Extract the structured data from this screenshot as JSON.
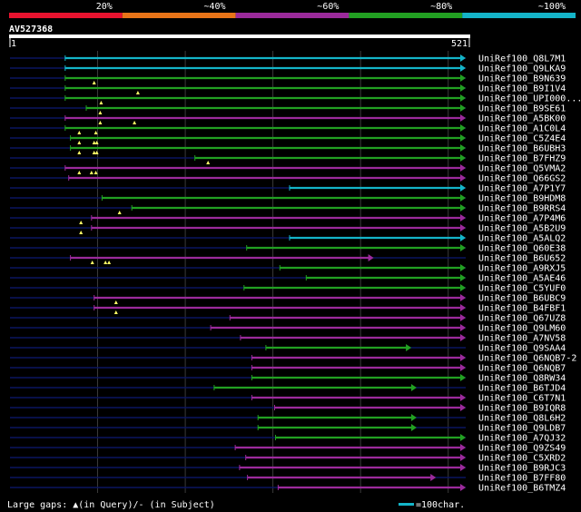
{
  "chart_data": {
    "type": "blast-alignment-overview",
    "query_name": "AV527368",
    "query_start": "1",
    "query_end": "521",
    "query_length": 521,
    "identity_scale": [
      {
        "label": "20%",
        "color": "#e8132f"
      },
      {
        "label": "~40%",
        "color": "#e87418"
      },
      {
        "label": "~60%",
        "color": "#9b2a9b"
      },
      {
        "label": "~80%",
        "color": "#22a022"
      },
      {
        "label": "~100%",
        "color": "#14b4c8"
      }
    ],
    "gap_legend": "Large gaps: ▲(in Query)/- (in Subject)",
    "scale_legend": "=100char.",
    "hits": [
      {
        "name": "UniRef100_Q8L7M1",
        "start": 64,
        "end": 521,
        "color": "#14b4c8",
        "arrow": true,
        "marks": []
      },
      {
        "name": "UniRef100_Q9LKA9",
        "start": 64,
        "end": 521,
        "color": "#14b4c8",
        "arrow": true,
        "marks": []
      },
      {
        "name": "UniRef100_B9N639",
        "start": 64,
        "end": 521,
        "color": "#22a022",
        "arrow": true,
        "marks": [
          97
        ]
      },
      {
        "name": "UniRef100_B9I1V4",
        "start": 64,
        "end": 521,
        "color": "#22a022",
        "arrow": true,
        "marks": [
          147
        ]
      },
      {
        "name": "UniRef100_UPI000...",
        "start": 64,
        "end": 521,
        "color": "#22a022",
        "arrow": true,
        "marks": [
          105
        ]
      },
      {
        "name": "UniRef100_B9SE61",
        "start": 88,
        "end": 521,
        "color": "#22a022",
        "arrow": true,
        "marks": [
          104
        ]
      },
      {
        "name": "UniRef100_A5BK00",
        "start": 64,
        "end": 521,
        "color": "#9b2a9b",
        "arrow": true,
        "marks": [
          104,
          143
        ]
      },
      {
        "name": "UniRef100_A1C0L4",
        "start": 64,
        "end": 521,
        "color": "#22a022",
        "arrow": true,
        "marks": [
          80,
          99
        ]
      },
      {
        "name": "UniRef100_C5Z4E4",
        "start": 70,
        "end": 521,
        "color": "#22a022",
        "arrow": true,
        "marks": [
          80,
          97,
          100
        ]
      },
      {
        "name": "UniRef100_B6UBH3",
        "start": 70,
        "end": 521,
        "color": "#22a022",
        "arrow": true,
        "marks": [
          80,
          97,
          100
        ]
      },
      {
        "name": "UniRef100_B7FHZ9",
        "start": 212,
        "end": 521,
        "color": "#22a022",
        "arrow": true,
        "marks": [
          227
        ]
      },
      {
        "name": "UniRef100_Q5VMA2",
        "start": 64,
        "end": 521,
        "color": "#9b2a9b",
        "arrow": true,
        "marks": [
          80,
          94,
          99
        ]
      },
      {
        "name": "UniRef100_Q66GS2",
        "start": 68,
        "end": 521,
        "color": "#9b2a9b",
        "arrow": true,
        "marks": []
      },
      {
        "name": "UniRef100_A7P1Y7",
        "start": 320,
        "end": 521,
        "color": "#14b4c8",
        "arrow": true,
        "marks": []
      },
      {
        "name": "UniRef100_B9HDM8",
        "start": 106,
        "end": 521,
        "color": "#22a022",
        "arrow": true,
        "marks": []
      },
      {
        "name": "UniRef100_B9RRS4",
        "start": 140,
        "end": 521,
        "color": "#22a022",
        "arrow": true,
        "marks": [
          126
        ]
      },
      {
        "name": "UniRef100_A7P4M6",
        "start": 94,
        "end": 521,
        "color": "#9b2a9b",
        "arrow": true,
        "marks": [
          82
        ]
      },
      {
        "name": "UniRef100_A5B2U9",
        "start": 94,
        "end": 521,
        "color": "#9b2a9b",
        "arrow": true,
        "marks": [
          82
        ]
      },
      {
        "name": "UniRef100_A5ALQ2",
        "start": 320,
        "end": 521,
        "color": "#14b4c8",
        "arrow": true,
        "marks": []
      },
      {
        "name": "UniRef100_Q60E38",
        "start": 271,
        "end": 521,
        "color": "#22a022",
        "arrow": true,
        "marks": []
      },
      {
        "name": "UniRef100_B6U652",
        "start": 70,
        "end": 416,
        "color": "#9b2a9b",
        "arrow": true,
        "marks": [
          95,
          110,
          114
        ]
      },
      {
        "name": "UniRef100_A9RXJ5",
        "start": 309,
        "end": 521,
        "color": "#22a022",
        "arrow": true,
        "marks": []
      },
      {
        "name": "UniRef100_A5AE46",
        "start": 339,
        "end": 521,
        "color": "#22a022",
        "arrow": true,
        "marks": []
      },
      {
        "name": "UniRef100_C5YUF0",
        "start": 268,
        "end": 521,
        "color": "#22a022",
        "arrow": true,
        "marks": []
      },
      {
        "name": "UniRef100_B6UBC9",
        "start": 97,
        "end": 521,
        "color": "#9b2a9b",
        "arrow": true,
        "marks": [
          122
        ]
      },
      {
        "name": "UniRef100_B4FBF1",
        "start": 97,
        "end": 521,
        "color": "#9b2a9b",
        "arrow": true,
        "marks": [
          122
        ]
      },
      {
        "name": "UniRef100_Q67UZ8",
        "start": 252,
        "end": 521,
        "color": "#9b2a9b",
        "arrow": true,
        "marks": []
      },
      {
        "name": "UniRef100_Q9LM60",
        "start": 230,
        "end": 521,
        "color": "#9b2a9b",
        "arrow": true,
        "marks": []
      },
      {
        "name": "UniRef100_A7NV58",
        "start": 264,
        "end": 521,
        "color": "#9b2a9b",
        "arrow": true,
        "marks": []
      },
      {
        "name": "UniRef100_Q9SAA4",
        "start": 293,
        "end": 459,
        "color": "#22a022",
        "arrow": true,
        "marks": []
      },
      {
        "name": "UniRef100_Q6NQB7-2",
        "start": 277,
        "end": 521,
        "color": "#9b2a9b",
        "arrow": true,
        "marks": []
      },
      {
        "name": "UniRef100_Q6NQB7",
        "start": 277,
        "end": 521,
        "color": "#9b2a9b",
        "arrow": true,
        "marks": []
      },
      {
        "name": "UniRef100_Q8RW34",
        "start": 277,
        "end": 521,
        "color": "#22a022",
        "arrow": true,
        "marks": []
      },
      {
        "name": "UniRef100_B6TJD4",
        "start": 234,
        "end": 465,
        "color": "#22a022",
        "arrow": true,
        "marks": []
      },
      {
        "name": "UniRef100_C6T7N1",
        "start": 277,
        "end": 521,
        "color": "#9b2a9b",
        "arrow": true,
        "marks": []
      },
      {
        "name": "UniRef100_B9IQR8",
        "start": 303,
        "end": 521,
        "color": "#9b2a9b",
        "arrow": true,
        "marks": []
      },
      {
        "name": "UniRef100_Q8L6H2",
        "start": 284,
        "end": 465,
        "color": "#22a022",
        "arrow": true,
        "marks": []
      },
      {
        "name": "UniRef100_Q9LDB7",
        "start": 284,
        "end": 465,
        "color": "#22a022",
        "arrow": true,
        "marks": []
      },
      {
        "name": "UniRef100_A7QJ32",
        "start": 304,
        "end": 521,
        "color": "#22a022",
        "arrow": true,
        "marks": []
      },
      {
        "name": "UniRef100_Q9ZS49",
        "start": 258,
        "end": 521,
        "color": "#9b2a9b",
        "arrow": true,
        "marks": []
      },
      {
        "name": "UniRef100_C5XRD2",
        "start": 270,
        "end": 521,
        "color": "#9b2a9b",
        "arrow": true,
        "marks": []
      },
      {
        "name": "UniRef100_B9RJC3",
        "start": 263,
        "end": 521,
        "color": "#9b2a9b",
        "arrow": true,
        "marks": []
      },
      {
        "name": "UniRef100_B7FF80",
        "start": 272,
        "end": 487,
        "color": "#9b2a9b",
        "arrow": true,
        "marks": []
      },
      {
        "name": "UniRef100_B6TMZ4",
        "start": 307,
        "end": 521,
        "color": "#9b2a9b",
        "arrow": true,
        "marks": []
      }
    ]
  }
}
